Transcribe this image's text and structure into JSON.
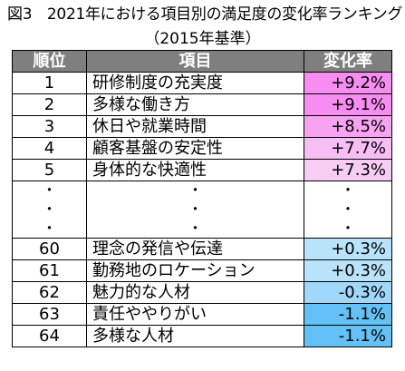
{
  "title": "図3　2021年における項目別の満足度の変化率ランキング",
  "subtitle": "（2015年基準）",
  "headers": [
    "順位",
    "項目",
    "変化率"
  ],
  "top_rows": [
    {
      "rank": "1",
      "item": "研修制度の充実度",
      "value": "+9.2%",
      "color": "#f78df0"
    },
    {
      "rank": "2",
      "item": "多様な働き方",
      "value": "+9.1%",
      "color": "#f78df0"
    },
    {
      "rank": "3",
      "item": "休日や就業時間",
      "value": "+8.5%",
      "color": "#f7a3f2"
    },
    {
      "rank": "4",
      "item": "顧客基盤の安定性",
      "value": "+7.7%",
      "color": "#f7bdf5"
    },
    {
      "rank": "5",
      "item": "身体的な快適性",
      "value": "+7.3%",
      "color": "#f7cdf6"
    }
  ],
  "ellipsis": "・",
  "bottom_rows": [
    {
      "rank": "60",
      "item": "理念の発信や伝達",
      "value": "+0.3%",
      "color": "#b9e3fb"
    },
    {
      "rank": "61",
      "item": "勤務地のロケーション",
      "value": "+0.3%",
      "color": "#b9e3fb"
    },
    {
      "rank": "62",
      "item": "魅力的な人材",
      "value": "-0.3%",
      "color": "#9fd8fa"
    },
    {
      "rank": "63",
      "item": "責任ややりがい",
      "value": "-1.1%",
      "color": "#63c1f5"
    },
    {
      "rank": "64",
      "item": "多様な人材",
      "value": "-1.1%",
      "color": "#63c1f5"
    }
  ]
}
